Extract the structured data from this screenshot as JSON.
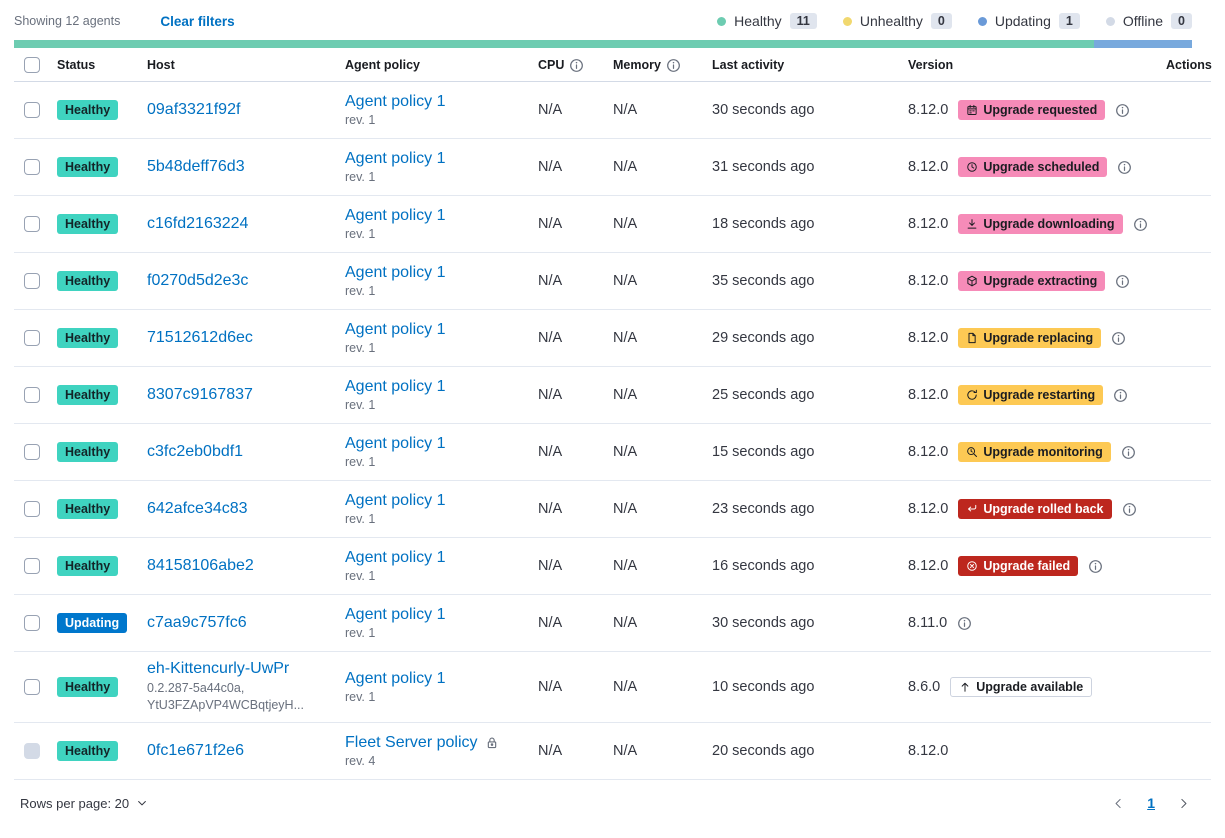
{
  "toolbar": {
    "showing_text": "Showing 12 agents",
    "clear_filters_label": "Clear filters",
    "legend": [
      {
        "label": "Healthy",
        "count": "11",
        "color": "#6dccb1"
      },
      {
        "label": "Unhealthy",
        "count": "0",
        "color": "#f1d86f"
      },
      {
        "label": "Updating",
        "count": "1",
        "color": "#6a9ad8"
      },
      {
        "label": "Offline",
        "count": "0",
        "color": "#d3dae6"
      }
    ]
  },
  "status_bar": {
    "segments": [
      {
        "status": "healthy",
        "count": 11,
        "color": "#6dccb1"
      },
      {
        "status": "updating",
        "count": 1,
        "color": "#78a9dd"
      }
    ]
  },
  "table": {
    "headers": {
      "status": "Status",
      "host": "Host",
      "policy": "Agent policy",
      "cpu": "CPU",
      "memory": "Memory",
      "last_activity": "Last activity",
      "version": "Version",
      "actions": "Actions"
    },
    "rows": [
      {
        "status": "Healthy",
        "status_type": "healthy",
        "host": "09af3321f92f",
        "host_sub": "",
        "policy": "Agent policy 1",
        "policy_rev": "rev. 1",
        "policy_locked": false,
        "cpu": "N/A",
        "memory": "N/A",
        "last_activity": "30 seconds ago",
        "version": "8.12.0",
        "upgrade_badge": {
          "label": "Upgrade requested",
          "type": "pink",
          "icon": "calendar-icon"
        },
        "upgrade_info": true,
        "checkbox_disabled": false
      },
      {
        "status": "Healthy",
        "status_type": "healthy",
        "host": "5b48deff76d3",
        "host_sub": "",
        "policy": "Agent policy 1",
        "policy_rev": "rev. 1",
        "policy_locked": false,
        "cpu": "N/A",
        "memory": "N/A",
        "last_activity": "31 seconds ago",
        "version": "8.12.0",
        "upgrade_badge": {
          "label": "Upgrade scheduled",
          "type": "pink",
          "icon": "clock-icon"
        },
        "upgrade_info": true,
        "checkbox_disabled": false
      },
      {
        "status": "Healthy",
        "status_type": "healthy",
        "host": "c16fd2163224",
        "host_sub": "",
        "policy": "Agent policy 1",
        "policy_rev": "rev. 1",
        "policy_locked": false,
        "cpu": "N/A",
        "memory": "N/A",
        "last_activity": "18 seconds ago",
        "version": "8.12.0",
        "upgrade_badge": {
          "label": "Upgrade downloading",
          "type": "pink",
          "icon": "download-icon"
        },
        "upgrade_info": true,
        "checkbox_disabled": false
      },
      {
        "status": "Healthy",
        "status_type": "healthy",
        "host": "f0270d5d2e3c",
        "host_sub": "",
        "policy": "Agent policy 1",
        "policy_rev": "rev. 1",
        "policy_locked": false,
        "cpu": "N/A",
        "memory": "N/A",
        "last_activity": "35 seconds ago",
        "version": "8.12.0",
        "upgrade_badge": {
          "label": "Upgrade extracting",
          "type": "pink",
          "icon": "package-icon"
        },
        "upgrade_info": true,
        "checkbox_disabled": false
      },
      {
        "status": "Healthy",
        "status_type": "healthy",
        "host": "71512612d6ec",
        "host_sub": "",
        "policy": "Agent policy 1",
        "policy_rev": "rev. 1",
        "policy_locked": false,
        "cpu": "N/A",
        "memory": "N/A",
        "last_activity": "29 seconds ago",
        "version": "8.12.0",
        "upgrade_badge": {
          "label": "Upgrade replacing",
          "type": "yellow",
          "icon": "document-icon"
        },
        "upgrade_info": true,
        "checkbox_disabled": false
      },
      {
        "status": "Healthy",
        "status_type": "healthy",
        "host": "8307c9167837",
        "host_sub": "",
        "policy": "Agent policy 1",
        "policy_rev": "rev. 1",
        "policy_locked": false,
        "cpu": "N/A",
        "memory": "N/A",
        "last_activity": "25 seconds ago",
        "version": "8.12.0",
        "upgrade_badge": {
          "label": "Upgrade restarting",
          "type": "yellow",
          "icon": "refresh-icon"
        },
        "upgrade_info": true,
        "checkbox_disabled": false
      },
      {
        "status": "Healthy",
        "status_type": "healthy",
        "host": "c3fc2eb0bdf1",
        "host_sub": "",
        "policy": "Agent policy 1",
        "policy_rev": "rev. 1",
        "policy_locked": false,
        "cpu": "N/A",
        "memory": "N/A",
        "last_activity": "15 seconds ago",
        "version": "8.12.0",
        "upgrade_badge": {
          "label": "Upgrade monitoring",
          "type": "yellow",
          "icon": "inspect-icon"
        },
        "upgrade_info": true,
        "checkbox_disabled": false
      },
      {
        "status": "Healthy",
        "status_type": "healthy",
        "host": "642afce34c83",
        "host_sub": "",
        "policy": "Agent policy 1",
        "policy_rev": "rev. 1",
        "policy_locked": false,
        "cpu": "N/A",
        "memory": "N/A",
        "last_activity": "23 seconds ago",
        "version": "8.12.0",
        "upgrade_badge": {
          "label": "Upgrade rolled back",
          "type": "red",
          "icon": "return-icon"
        },
        "upgrade_info": true,
        "checkbox_disabled": false
      },
      {
        "status": "Healthy",
        "status_type": "healthy",
        "host": "84158106abe2",
        "host_sub": "",
        "policy": "Agent policy 1",
        "policy_rev": "rev. 1",
        "policy_locked": false,
        "cpu": "N/A",
        "memory": "N/A",
        "last_activity": "16 seconds ago",
        "version": "8.12.0",
        "upgrade_badge": {
          "label": "Upgrade failed",
          "type": "red",
          "icon": "error-icon"
        },
        "upgrade_info": true,
        "checkbox_disabled": false
      },
      {
        "status": "Updating",
        "status_type": "updating",
        "host": "c7aa9c757fc6",
        "host_sub": "",
        "policy": "Agent policy 1",
        "policy_rev": "rev. 1",
        "policy_locked": false,
        "cpu": "N/A",
        "memory": "N/A",
        "last_activity": "30 seconds ago",
        "version": "8.11.0",
        "upgrade_badge": null,
        "upgrade_info": true,
        "checkbox_disabled": false
      },
      {
        "status": "Healthy",
        "status_type": "healthy",
        "host": "eh-Kittencurly-UwPr",
        "host_sub": "0.2.287-5a44c0a,\nYtU3FZApVP4WCBqtjeyH...",
        "policy": "Agent policy 1",
        "policy_rev": "rev. 1",
        "policy_locked": false,
        "cpu": "N/A",
        "memory": "N/A",
        "last_activity": "10 seconds ago",
        "version": "8.6.0",
        "upgrade_badge": {
          "label": "Upgrade available",
          "type": "hollow",
          "icon": "up-arrow-icon"
        },
        "upgrade_info": false,
        "checkbox_disabled": false
      },
      {
        "status": "Healthy",
        "status_type": "healthy",
        "host": "0fc1e671f2e6",
        "host_sub": "",
        "policy": "Fleet Server policy",
        "policy_rev": "rev. 4",
        "policy_locked": true,
        "cpu": "N/A",
        "memory": "N/A",
        "last_activity": "20 seconds ago",
        "version": "8.12.0",
        "upgrade_badge": null,
        "upgrade_info": false,
        "checkbox_disabled": true
      }
    ]
  },
  "footer": {
    "rows_per_page_label": "Rows per page: 20",
    "page": "1"
  }
}
